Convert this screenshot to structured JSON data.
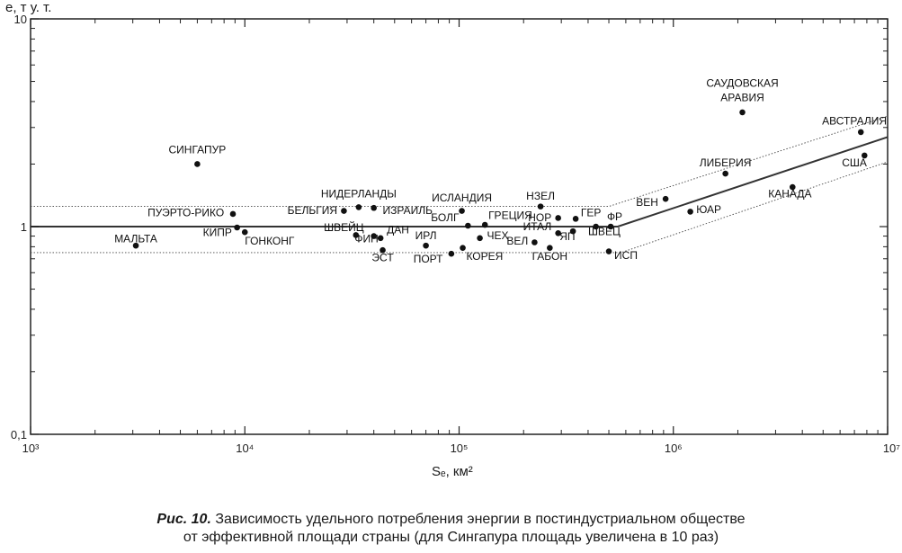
{
  "chart_data": {
    "type": "scatter",
    "x_scale": "log",
    "y_scale": "log",
    "xlim": [
      1000,
      10000000
    ],
    "ylim": [
      0.1,
      10
    ],
    "x_ticks": [
      {
        "value": 1000,
        "label": "10³"
      },
      {
        "value": 10000,
        "label": "10⁴"
      },
      {
        "value": 100000,
        "label": "10⁵"
      },
      {
        "value": 1000000,
        "label": "10⁶"
      },
      {
        "value": 10000000,
        "label": "10⁷"
      }
    ],
    "y_ticks": [
      {
        "value": 0.1,
        "label": "0,1"
      },
      {
        "value": 1,
        "label": "1"
      },
      {
        "value": 10,
        "label": "10"
      }
    ],
    "ylabel": "e, т у. т.",
    "xlabel": "Sₑ, км²",
    "points": [
      {
        "name": "САУДОВСКАЯ",
        "name2": "АРАВИЯ",
        "x": 2100000,
        "y": 3.55,
        "lx": 2100000,
        "ly": 4.7,
        "anchor": "middle"
      },
      {
        "name": "АВСТРАЛИЯ",
        "x": 7500000,
        "y": 2.85,
        "lx": 7000000,
        "ly": 3.1,
        "anchor": "middle"
      },
      {
        "name": "США",
        "x": 7800000,
        "y": 2.2,
        "lx": 7000000,
        "ly": 1.95,
        "anchor": "middle"
      },
      {
        "name": "ЛИБЕРИЯ",
        "x": 1750000,
        "y": 1.8,
        "lx": 1750000,
        "ly": 1.95,
        "anchor": "middle"
      },
      {
        "name": "КАНАДА",
        "x": 3600000,
        "y": 1.55,
        "lx": 3500000,
        "ly": 1.38,
        "anchor": "middle"
      },
      {
        "name": "ВЕН",
        "x": 920000,
        "y": 1.36,
        "lx": 850000,
        "ly": 1.26,
        "anchor": "end"
      },
      {
        "name": "ЮАР",
        "x": 1200000,
        "y": 1.18,
        "lx": 1280000,
        "ly": 1.16,
        "anchor": "start"
      },
      {
        "name": "СИНГАПУР",
        "x": 6000,
        "y": 2.0,
        "lx": 6000,
        "ly": 2.25,
        "anchor": "middle"
      },
      {
        "name": "ПУЭРТО-РИКО",
        "x": 8800,
        "y": 1.15,
        "lx": 8000,
        "ly": 1.12,
        "anchor": "end"
      },
      {
        "name": "МАЛЬТА",
        "x": 3100,
        "y": 0.81,
        "lx": 3100,
        "ly": 0.84,
        "anchor": "middle"
      },
      {
        "name": "КИПР",
        "x": 9200,
        "y": 0.99,
        "lx": 8700,
        "ly": 0.9,
        "anchor": "end"
      },
      {
        "name": "ГОНКОНГ",
        "x": 10000,
        "y": 0.94,
        "lx": 10000,
        "ly": 0.82,
        "anchor": "start"
      },
      {
        "name": "НИДЕРЛАНДЫ",
        "x": 34000,
        "y": 1.24,
        "lx": 34000,
        "ly": 1.38,
        "anchor": "middle"
      },
      {
        "name": "БЕЛЬГИЯ",
        "x": 29000,
        "y": 1.19,
        "lx": 27000,
        "ly": 1.15,
        "anchor": "end"
      },
      {
        "name": "ИЗРАИЛЬ",
        "x": 40000,
        "y": 1.23,
        "lx": 44000,
        "ly": 1.15,
        "anchor": "start"
      },
      {
        "name": "ШВЕЙЦ",
        "x": 33000,
        "y": 0.91,
        "lx": 29000,
        "ly": 0.95,
        "anchor": "middle"
      },
      {
        "name": "ФИН",
        "x": 40000,
        "y": 0.9,
        "lx": 37000,
        "ly": 0.84,
        "anchor": "middle"
      },
      {
        "name": "ДАН",
        "x": 43000,
        "y": 0.88,
        "lx": 46000,
        "ly": 0.93,
        "anchor": "start"
      },
      {
        "name": "ЭСТ",
        "x": 44000,
        "y": 0.77,
        "lx": 44000,
        "ly": 0.68,
        "anchor": "middle"
      },
      {
        "name": "ИСЛАНДИЯ",
        "x": 103000,
        "y": 1.19,
        "lx": 103000,
        "ly": 1.32,
        "anchor": "middle"
      },
      {
        "name": "БОЛГ",
        "x": 110000,
        "y": 1.01,
        "lx": 100000,
        "ly": 1.06,
        "anchor": "end"
      },
      {
        "name": "ГРЕЦИЯ",
        "x": 132000,
        "y": 1.02,
        "lx": 137000,
        "ly": 1.09,
        "anchor": "start"
      },
      {
        "name": "ИРЛ",
        "x": 70000,
        "y": 0.81,
        "lx": 70000,
        "ly": 0.87,
        "anchor": "middle"
      },
      {
        "name": "ЧЕХ",
        "x": 125000,
        "y": 0.88,
        "lx": 135000,
        "ly": 0.87,
        "anchor": "start"
      },
      {
        "name": "ПОРТ",
        "x": 92000,
        "y": 0.74,
        "lx": 84000,
        "ly": 0.67,
        "anchor": "end"
      },
      {
        "name": "КОРЕЯ",
        "x": 104000,
        "y": 0.79,
        "lx": 108000,
        "ly": 0.69,
        "anchor": "start"
      },
      {
        "name": "НЗЕЛ",
        "x": 240000,
        "y": 1.25,
        "lx": 240000,
        "ly": 1.35,
        "anchor": "middle"
      },
      {
        "name": "НОР",
        "x": 290000,
        "y": 1.1,
        "lx": 270000,
        "ly": 1.06,
        "anchor": "end"
      },
      {
        "name": "ГЕР",
        "x": 350000,
        "y": 1.09,
        "lx": 370000,
        "ly": 1.12,
        "anchor": "start"
      },
      {
        "name": "ФР",
        "x": 510000,
        "y": 1.0,
        "lx": 490000,
        "ly": 1.07,
        "anchor": "start"
      },
      {
        "name": "ИТАЛ",
        "x": 290000,
        "y": 0.93,
        "lx": 270000,
        "ly": 0.96,
        "anchor": "end"
      },
      {
        "name": "ВЕЛ",
        "x": 225000,
        "y": 0.84,
        "lx": 210000,
        "ly": 0.82,
        "anchor": "end"
      },
      {
        "name": "ЯП",
        "x": 340000,
        "y": 0.95,
        "lx": 320000,
        "ly": 0.86,
        "anchor": "middle"
      },
      {
        "name": "ШВЕЦ",
        "x": 435000,
        "y": 1.0,
        "lx": 400000,
        "ly": 0.91,
        "anchor": "start"
      },
      {
        "name": "ГАБОН",
        "x": 265000,
        "y": 0.79,
        "lx": 265000,
        "ly": 0.69,
        "anchor": "middle"
      },
      {
        "name": "ИСП",
        "x": 500000,
        "y": 0.76,
        "lx": 530000,
        "ly": 0.7,
        "anchor": "start"
      }
    ],
    "trend_main": [
      [
        1000,
        1.0
      ],
      [
        550000,
        1.0
      ],
      [
        10000000,
        2.7
      ]
    ],
    "trend_upper": [
      [
        1000,
        1.25
      ],
      [
        500000,
        1.25
      ],
      [
        10000000,
        3.4
      ]
    ],
    "trend_lower": [
      [
        1000,
        0.75
      ],
      [
        570000,
        0.75
      ],
      [
        10000000,
        2.05
      ]
    ]
  },
  "caption": {
    "lead": "Рис. 10.",
    "line1": "Зависимость удельного потребления энергии в постиндустриальном обществе",
    "line2": "от эффективной площади страны (для Сингапура площадь увеличена в 10 раз)"
  }
}
